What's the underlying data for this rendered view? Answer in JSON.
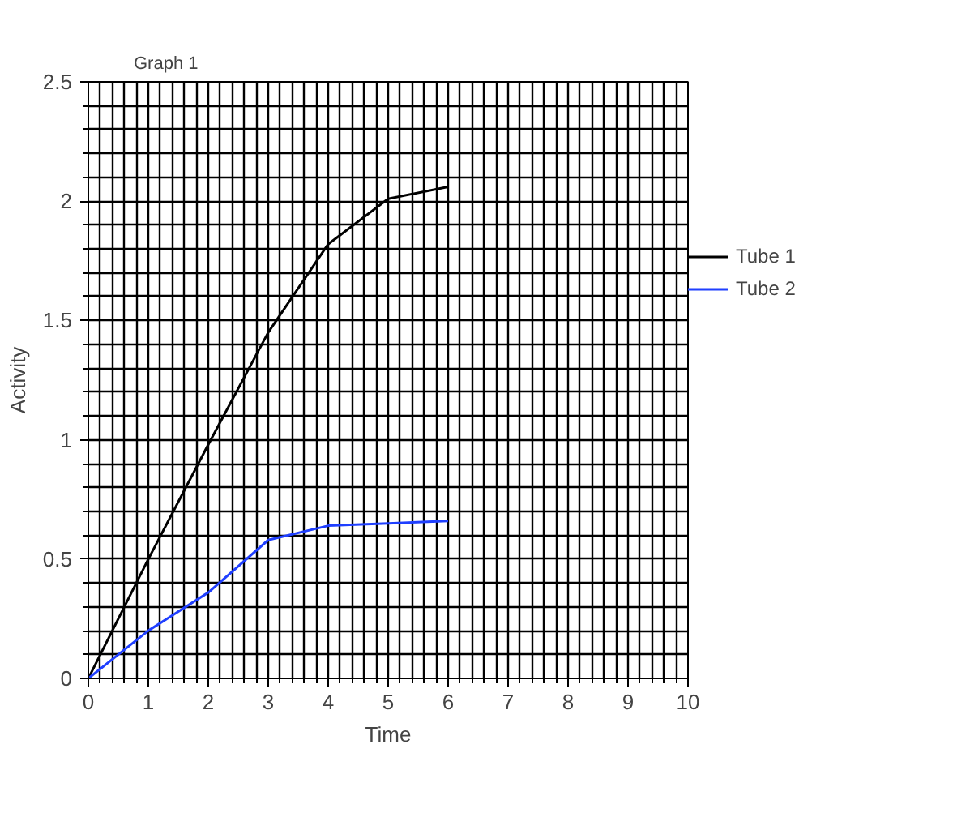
{
  "chart_data": {
    "type": "line",
    "title": "Graph 1",
    "xlabel": "Time",
    "ylabel": "Activity",
    "x": [
      0,
      1,
      2,
      3,
      4,
      5,
      6
    ],
    "series": [
      {
        "name": "Tube 1",
        "color": "#000000",
        "values": [
          0,
          0.5,
          0.98,
          1.45,
          1.82,
          2.01,
          2.06
        ]
      },
      {
        "name": "Tube 2",
        "color": "#1f3fff",
        "values": [
          0,
          0.2,
          0.36,
          0.58,
          0.64,
          0.65,
          0.66
        ]
      }
    ],
    "xlim": [
      0,
      10
    ],
    "ylim": [
      0,
      2.5
    ],
    "xticks": [
      0,
      1,
      2,
      3,
      4,
      5,
      6,
      7,
      8,
      9,
      10
    ],
    "yticks": [
      0,
      0.5,
      1,
      1.5,
      2,
      2.5
    ],
    "grid": true,
    "legend": "right",
    "marker": "none",
    "line_style": "solid"
  }
}
